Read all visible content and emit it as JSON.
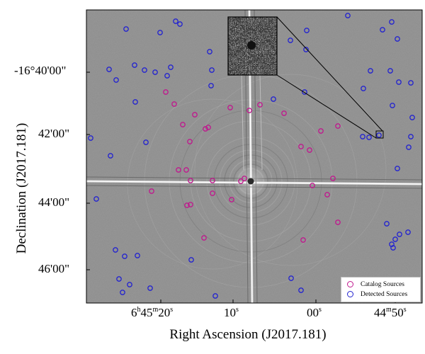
{
  "figure": {
    "xlabel": "Right Ascension (J2017.181)",
    "ylabel": "Declination (J2017.181)",
    "x_ticks": [
      {
        "main": "6",
        "sup1": "h",
        "mid": "45",
        "sup2": "m",
        "tail": "20",
        "sup3": "s"
      },
      {
        "main": "10",
        "sup1": "s",
        "mid": "",
        "sup2": "",
        "tail": "",
        "sup3": ""
      },
      {
        "main": "00",
        "sup1": "s",
        "mid": "",
        "sup2": "",
        "tail": "",
        "sup3": ""
      },
      {
        "main": "44",
        "sup1": "m",
        "mid": "50",
        "sup2": "s",
        "tail": "",
        "sup3": ""
      }
    ],
    "y_ticks": [
      "-16°40'00\"",
      "42'00\"",
      "44'00\"",
      "46'00\""
    ],
    "legend": [
      {
        "label": "Catalog Sources",
        "color": "#c0188e"
      },
      {
        "label": "Detected Sources",
        "color": "#2323d0"
      }
    ],
    "image": {
      "background_color": "#8f8f8f",
      "bright_star": "central saturated star with diffraction spikes and ring artefacts",
      "inset": "zoomed noisy cutout of the boxed faint source"
    }
  }
}
